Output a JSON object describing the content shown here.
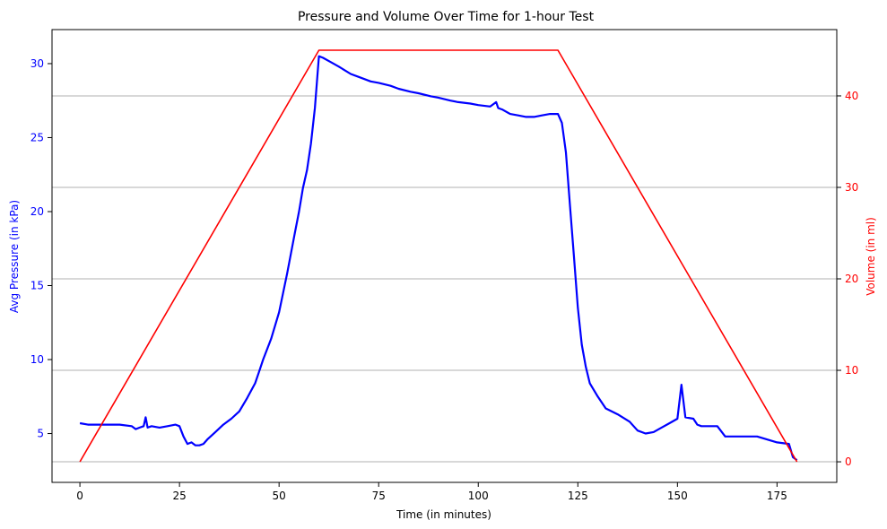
{
  "chart_data": {
    "type": "line",
    "title": "Pressure and Volume Over Time for 1-hour Test",
    "xlabel": "Time (in minutes)",
    "ylabel_left": "Avg Pressure (in kPa)",
    "ylabel_right": "Volume (in ml)",
    "xlim": [
      -7,
      190
    ],
    "ylim_left": [
      1.7,
      32.3
    ],
    "ylim_right": [
      -2.25,
      47.25
    ],
    "x_ticks": [
      0,
      25,
      50,
      75,
      100,
      125,
      150,
      175
    ],
    "y_ticks_left": [
      5,
      10,
      15,
      20,
      25,
      30
    ],
    "y_ticks_right": [
      0,
      10,
      20,
      30,
      40
    ],
    "grid": "horizontal on right axis",
    "colors": {
      "pressure": "#0000ff",
      "volume": "#ff0000",
      "grid": "#b0b0b0"
    },
    "series": [
      {
        "axis": "left",
        "color": "#0000ff",
        "x": [
          0,
          2,
          5,
          8,
          10,
          13,
          14,
          15,
          16,
          16.5,
          17,
          18,
          20,
          22,
          24,
          25,
          26,
          27,
          28,
          29,
          30,
          31,
          32,
          34,
          36,
          38,
          40,
          42,
          44,
          45,
          46,
          48,
          50,
          52,
          54,
          55,
          56,
          57,
          58,
          59,
          60,
          61,
          63,
          65,
          68,
          70,
          73,
          75,
          78,
          80,
          83,
          85,
          88,
          90,
          93,
          95,
          98,
          100,
          103,
          104.5,
          105,
          106,
          108,
          110,
          112,
          114,
          116,
          118,
          120,
          121,
          122,
          123,
          124,
          125,
          126,
          127,
          128,
          130,
          132,
          135,
          138,
          140,
          142,
          144,
          146,
          148,
          150,
          151,
          152,
          154,
          155,
          156,
          160,
          162,
          165,
          170,
          175,
          178,
          179,
          180
        ],
        "y": [
          5.7,
          5.6,
          5.6,
          5.6,
          5.6,
          5.5,
          5.3,
          5.4,
          5.5,
          6.1,
          5.4,
          5.5,
          5.4,
          5.5,
          5.6,
          5.5,
          4.8,
          4.3,
          4.4,
          4.2,
          4.2,
          4.3,
          4.6,
          5.1,
          5.6,
          6.0,
          6.5,
          7.4,
          8.4,
          9.2,
          10.0,
          11.4,
          13.2,
          15.8,
          18.6,
          20.0,
          21.6,
          22.8,
          24.6,
          27.0,
          30.5,
          30.4,
          30.1,
          29.8,
          29.3,
          29.1,
          28.8,
          28.7,
          28.5,
          28.3,
          28.1,
          28.0,
          27.8,
          27.7,
          27.5,
          27.4,
          27.3,
          27.2,
          27.1,
          27.4,
          27.0,
          26.9,
          26.6,
          26.5,
          26.4,
          26.4,
          26.5,
          26.6,
          26.6,
          26.0,
          24.0,
          20.5,
          17.0,
          13.5,
          11.0,
          9.5,
          8.4,
          7.5,
          6.7,
          6.3,
          5.8,
          5.2,
          5.0,
          5.1,
          5.4,
          5.7,
          6.0,
          8.3,
          6.1,
          6.0,
          5.6,
          5.5,
          5.5,
          4.8,
          4.8,
          4.8,
          4.4,
          4.3,
          3.4,
          3.2
        ]
      },
      {
        "axis": "right",
        "color": "#ff0000",
        "x": [
          0,
          60,
          120,
          180
        ],
        "y": [
          0,
          45,
          45,
          0
        ]
      }
    ]
  }
}
